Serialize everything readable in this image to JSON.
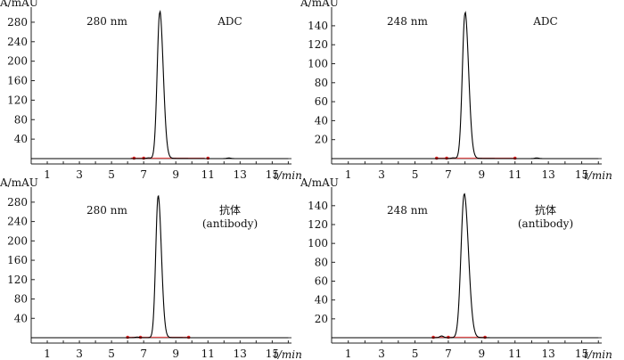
{
  "chart_data": [
    {
      "type": "line",
      "wavelength": "280 nm",
      "sample": "ADC",
      "sample_sub": "",
      "ylabel": "A/mAU",
      "xlabel": "t/min",
      "xlim": [
        0,
        16.2
      ],
      "ylim": [
        -2,
        300
      ],
      "xticks": [
        1,
        3,
        5,
        7,
        9,
        11,
        13,
        15
      ],
      "yticks": [
        40,
        80,
        120,
        160,
        200,
        240,
        280
      ],
      "peak": {
        "x": 8.0,
        "y": 300,
        "width": 0.16,
        "tail": 0.1
      },
      "baseline": {
        "start": 6.2,
        "end": 10.8
      },
      "markers": [
        6.4,
        7.0,
        11.0
      ],
      "minor": [
        {
          "x": 7.3,
          "y": 1.5
        },
        {
          "x": 12.3,
          "y": 1.3
        }
      ],
      "series": [
        {
          "x": [
            6.0,
            7.3,
            7.7,
            7.9,
            8.0,
            8.1,
            8.3,
            8.6,
            9.0,
            10.0,
            16.0
          ],
          "y": [
            0,
            2,
            60,
            260,
            300,
            250,
            80,
            20,
            4,
            0,
            0
          ]
        }
      ]
    },
    {
      "type": "line",
      "wavelength": "248 nm",
      "sample": "ADC",
      "sample_sub": "",
      "ylabel": "A/mAU",
      "xlabel": "t/min",
      "xlim": [
        0,
        16.2
      ],
      "ylim": [
        -1,
        154
      ],
      "xticks": [
        1,
        3,
        5,
        7,
        9,
        11,
        13,
        15
      ],
      "yticks": [
        20,
        40,
        60,
        80,
        100,
        120,
        140
      ],
      "peak": {
        "x": 8.0,
        "y": 153,
        "width": 0.16,
        "tail": 0.1
      },
      "baseline": {
        "start": 6.2,
        "end": 11.0
      },
      "markers": [
        6.3,
        6.9,
        11.0
      ],
      "minor": [
        {
          "x": 7.3,
          "y": 0.8
        },
        {
          "x": 12.3,
          "y": 0.7
        }
      ],
      "series": [
        {
          "x": [
            6.0,
            7.3,
            7.7,
            7.9,
            8.0,
            8.1,
            8.3,
            8.6,
            9.0,
            10.0,
            16.0
          ],
          "y": [
            0,
            1,
            30,
            130,
            153,
            125,
            40,
            10,
            2,
            0,
            0
          ]
        }
      ]
    },
    {
      "type": "line",
      "wavelength": "280 nm",
      "sample": "抗体",
      "sample_sub": "(antibody)",
      "ylabel": "A/mAU",
      "xlabel": "t/min",
      "xlim": [
        0,
        16.2
      ],
      "ylim": [
        -2,
        300
      ],
      "xticks": [
        1,
        3,
        5,
        7,
        9,
        11,
        13,
        15
      ],
      "yticks": [
        40,
        80,
        120,
        160,
        200,
        240,
        280
      ],
      "peak": {
        "x": 7.9,
        "y": 292,
        "width": 0.15,
        "tail": 0.05
      },
      "baseline": {
        "start": 6.0,
        "end": 9.9
      },
      "markers": [
        6.0,
        6.8,
        9.8
      ],
      "minor": [
        {
          "x": 6.6,
          "y": 1.2
        }
      ],
      "series": [
        {
          "x": [
            6.0,
            7.3,
            7.6,
            7.8,
            7.9,
            8.0,
            8.2,
            8.5,
            9.0,
            10.0,
            16.0
          ],
          "y": [
            0,
            2,
            40,
            240,
            292,
            240,
            40,
            5,
            1,
            0,
            0
          ]
        }
      ]
    },
    {
      "type": "line",
      "wavelength": "248 nm",
      "sample": "抗体",
      "sample_sub": "(antibody)",
      "ylabel": "A/mAU",
      "xlabel": "t/min",
      "xlim": [
        0,
        16.2
      ],
      "ylim": [
        -1,
        154
      ],
      "xticks": [
        1,
        3,
        5,
        7,
        9,
        11,
        13,
        15
      ],
      "yticks": [
        20,
        40,
        60,
        80,
        100,
        120,
        140
      ],
      "peak": {
        "x": 7.95,
        "y": 152,
        "width": 0.19,
        "tail": 0.05
      },
      "baseline": {
        "start": 6.1,
        "end": 9.3
      },
      "markers": [
        6.1,
        7.0,
        9.2
      ],
      "minor": [
        {
          "x": 6.6,
          "y": 1.8
        }
      ],
      "series": [
        {
          "x": [
            6.0,
            7.2,
            7.6,
            7.8,
            7.95,
            8.1,
            8.3,
            8.6,
            9.0,
            10.0,
            16.0
          ],
          "y": [
            0,
            2,
            30,
            120,
            152,
            120,
            35,
            5,
            1,
            0,
            0
          ]
        }
      ]
    }
  ]
}
